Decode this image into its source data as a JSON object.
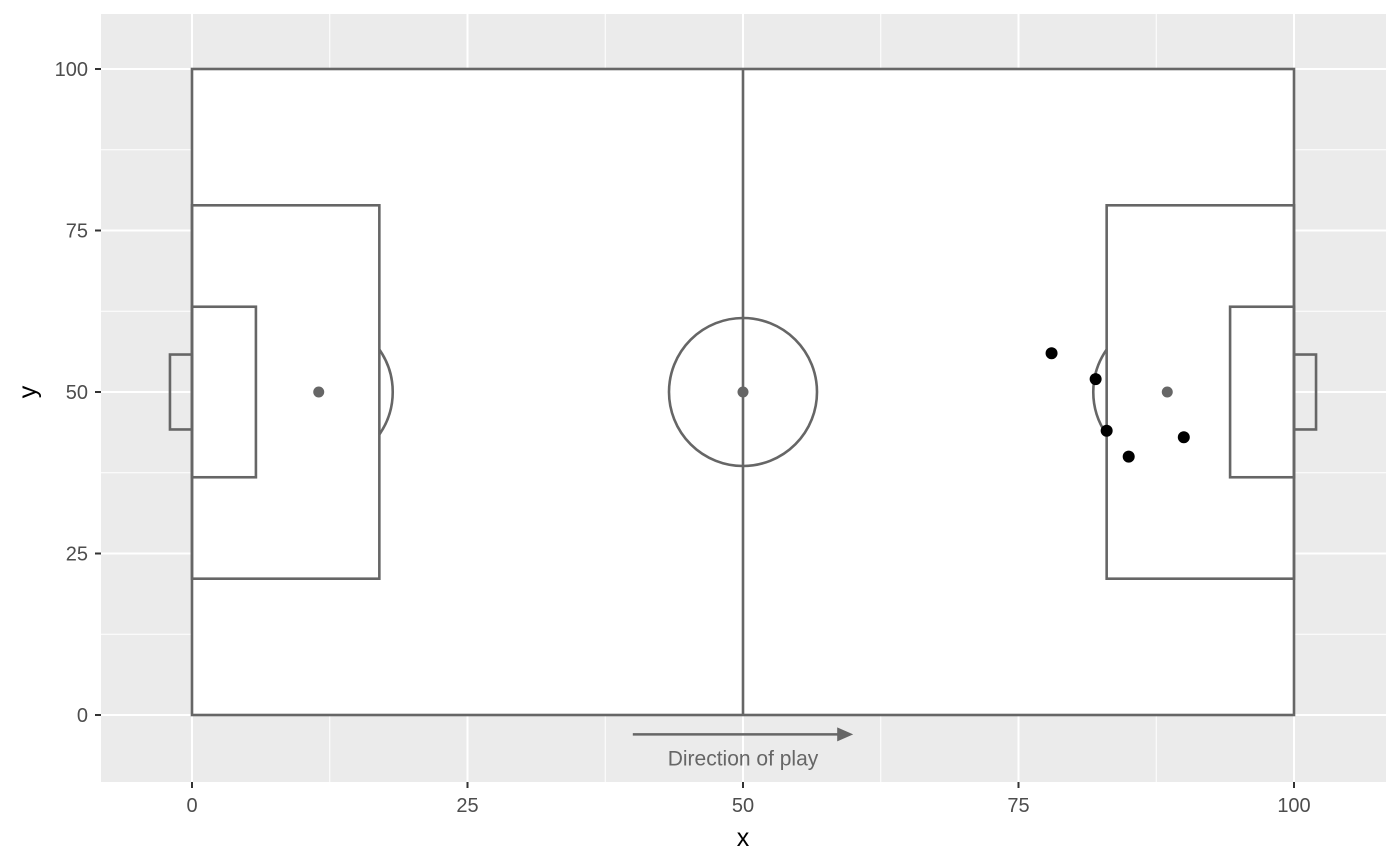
{
  "chart_data": {
    "type": "scatter",
    "title": "",
    "xlabel": "x",
    "ylabel": "y",
    "xlim": [
      -8.3,
      108.3
    ],
    "ylim": [
      -10.3,
      108.3
    ],
    "x_ticks": [
      0,
      25,
      50,
      75,
      100
    ],
    "x_tick_labels": [
      "0",
      "25",
      "50",
      "75",
      "100"
    ],
    "y_ticks": [
      0,
      25,
      50,
      75,
      100
    ],
    "y_tick_labels": [
      "0",
      "25",
      "50",
      "75",
      "100"
    ],
    "grid": true,
    "background": "opta-style football pitch",
    "annotation": {
      "text": "Direction of play",
      "arrow_from": [
        40,
        -3
      ],
      "arrow_to": [
        60,
        -3
      ]
    },
    "series": [
      {
        "points": [
          {
            "x": 78,
            "y": 56
          },
          {
            "x": 82,
            "y": 52
          },
          {
            "x": 83,
            "y": 44
          },
          {
            "x": 85,
            "y": 40
          },
          {
            "x": 90,
            "y": 43
          }
        ],
        "color": "#000000"
      }
    ]
  },
  "colors": {
    "panel_background": "#ebebeb",
    "gridline": "#ffffff",
    "pitch_fill": "#ffffff",
    "pitch_line": "#666666",
    "point": "#000000"
  }
}
